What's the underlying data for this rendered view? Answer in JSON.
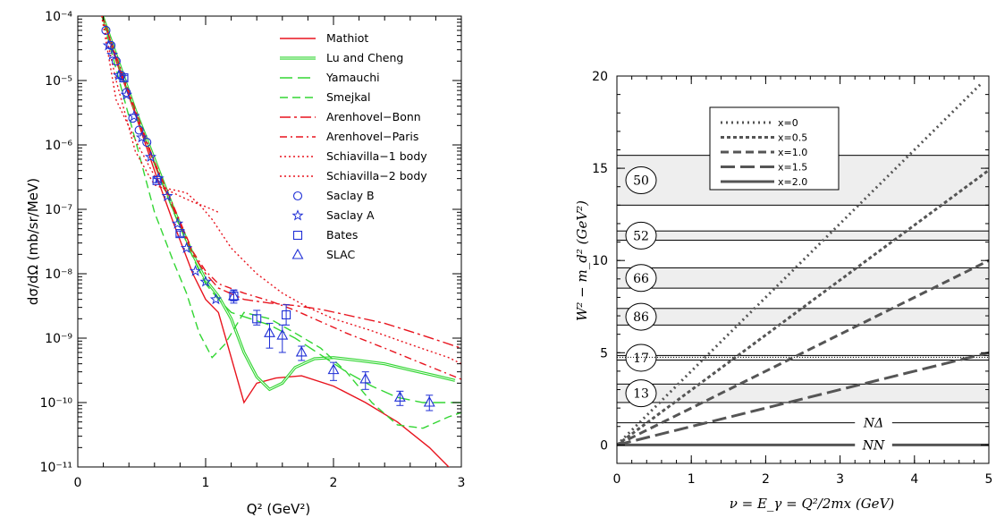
{
  "chart_data": [
    {
      "type": "line",
      "title": "",
      "xlabel": "Q² (GeV²)",
      "ylabel": "dσ/dΩ (mb/sr/MeV)",
      "xlim": [
        0,
        3
      ],
      "ylim": [
        1e-11,
        0.0001
      ],
      "yscale": "log",
      "xticks": [
        "0",
        "1",
        "2",
        "3"
      ],
      "yticks": [
        "10⁻¹¹",
        "10⁻¹⁰",
        "10⁻⁹",
        "10⁻⁸",
        "10⁻⁷",
        "10⁻⁶",
        "10⁻⁵",
        "10⁻⁴"
      ],
      "legend_position": "top-right",
      "series": [
        {
          "name": "Mathiot",
          "style": "solid-red",
          "color": "#e8141e",
          "x": [
            0.18,
            0.3,
            0.45,
            0.6,
            0.75,
            0.9,
            1.0,
            1.1,
            1.2,
            1.3,
            1.4,
            1.55,
            1.75,
            2.0,
            2.25,
            2.5,
            2.75,
            2.95
          ],
          "y": [
            0.00012,
            2e-05,
            3e-06,
            4e-07,
            6e-08,
            1e-08,
            4e-09,
            2.5e-09,
            5e-10,
            1e-10,
            2e-10,
            2.4e-10,
            2.6e-10,
            1.8e-10,
            1e-10,
            5e-11,
            2e-11,
            8e-12
          ]
        },
        {
          "name": "Lu and Cheng",
          "style": "double-green",
          "color": "#33d633",
          "x": [
            0.18,
            0.3,
            0.45,
            0.6,
            0.75,
            0.9,
            1.0,
            1.1,
            1.2,
            1.3,
            1.4,
            1.5,
            1.6,
            1.7,
            1.85,
            2.0,
            2.2,
            2.4,
            2.6,
            2.8,
            2.95
          ],
          "y": [
            0.00012,
            2.5e-05,
            3.5e-06,
            6e-07,
            1e-07,
            2e-08,
            8e-09,
            4.5e-09,
            2e-09,
            6e-10,
            2.5e-10,
            1.6e-10,
            2e-10,
            3.5e-10,
            4.8e-10,
            5e-10,
            4.5e-10,
            4e-10,
            3.2e-10,
            2.6e-10,
            2.2e-10
          ]
        },
        {
          "name": "Yamauchi",
          "style": "long-dash-green",
          "color": "#33d633",
          "x": [
            0.18,
            0.3,
            0.45,
            0.6,
            0.75,
            0.9,
            1.0,
            1.1,
            1.2,
            1.35,
            1.5,
            1.7,
            1.9,
            2.1,
            2.3,
            2.5,
            2.7,
            2.9,
            3.0
          ],
          "y": [
            0.00012,
            2.2e-05,
            3.2e-06,
            5e-07,
            9e-08,
            1.8e-08,
            7e-09,
            4e-09,
            2.5e-09,
            2e-09,
            1.6e-09,
            1e-09,
            5.5e-10,
            3e-10,
            1.8e-10,
            1.2e-10,
            1e-10,
            1e-10,
            1e-10
          ]
        },
        {
          "name": "Smejkal",
          "style": "dash-green",
          "color": "#33d633",
          "x": [
            0.18,
            0.3,
            0.45,
            0.6,
            0.75,
            0.85,
            0.95,
            1.05,
            1.15,
            1.3,
            1.5,
            1.7,
            1.9,
            2.1,
            2.3,
            2.5,
            2.7,
            2.9,
            3.0
          ],
          "y": [
            0.00012,
            1.5e-05,
            1.2e-06,
            9e-08,
            1.5e-08,
            5e-09,
            1.2e-09,
            5e-10,
            8e-10,
            2.5e-09,
            2e-09,
            1.2e-09,
            7e-10,
            3e-10,
            1e-10,
            4.5e-11,
            4e-11,
            6e-11,
            7e-11
          ]
        },
        {
          "name": "Arenhovel−Bonn",
          "style": "dash-dot-red",
          "color": "#e8141e",
          "x": [
            0.18,
            0.3,
            0.45,
            0.6,
            0.75,
            0.9,
            1.0,
            1.1,
            1.3,
            1.5,
            1.7,
            1.9,
            2.1,
            2.4,
            2.7,
            3.0
          ],
          "y": [
            0.00012,
            2.2e-05,
            3.2e-06,
            5e-07,
            1e-07,
            2e-08,
            1e-08,
            6e-09,
            4e-09,
            3.5e-09,
            3.2e-09,
            2.8e-09,
            2.3e-09,
            1.7e-09,
            1.1e-09,
            7e-10
          ]
        },
        {
          "name": "Arenhovel−Paris",
          "style": "dash-dot-red-2",
          "color": "#e8141e",
          "x": [
            0.18,
            0.3,
            0.45,
            0.6,
            0.75,
            0.9,
            1.0,
            1.1,
            1.3,
            1.5,
            1.7,
            1.9,
            2.1,
            2.4,
            2.7,
            3.0
          ],
          "y": [
            0.00012,
            2.4e-05,
            3.5e-06,
            5.5e-07,
            1.1e-07,
            2.2e-08,
            1.1e-08,
            7e-09,
            5e-09,
            3.8e-09,
            2.7e-09,
            1.8e-09,
            1.2e-09,
            7e-10,
            4e-10,
            2.3e-10
          ]
        },
        {
          "name": "Schiavilla−1 body",
          "style": "dot-red",
          "color": "#e8141e",
          "x": [
            0.18,
            0.3,
            0.45,
            0.55,
            0.65,
            0.75,
            0.85,
            0.95,
            1.05,
            1.2,
            1.4,
            1.6,
            1.8,
            2.0,
            2.3,
            2.6,
            2.9,
            3.0
          ],
          "y": [
            0.00012,
            5e-06,
            1.2e-06,
            5e-07,
            2.2e-07,
            2e-07,
            1.8e-07,
            1.2e-07,
            7e-08,
            2.5e-08,
            1e-08,
            5e-09,
            3e-09,
            2e-09,
            1.3e-09,
            8e-10,
            5e-10,
            4e-10
          ]
        },
        {
          "name": "Schiavilla−2 body",
          "style": "dot-red-2",
          "color": "#e8141e",
          "x": [
            0.18,
            0.3,
            0.45,
            0.55,
            0.6,
            0.7,
            0.8,
            0.9,
            1.0,
            1.1
          ],
          "y": [
            0.00012,
            1e-05,
            8e-07,
            3.5e-07,
            2.4e-07,
            2e-07,
            1.6e-07,
            1.3e-07,
            1.1e-07,
            9e-08
          ]
        }
      ],
      "data_points": [
        {
          "name": "Saclay B",
          "marker": "circle",
          "color": "#1f2fd6",
          "x": [
            0.22,
            0.26,
            0.3,
            0.34,
            0.38,
            0.43,
            0.48,
            0.54
          ],
          "y": [
            6e-05,
            3.5e-05,
            2e-05,
            1.2e-05,
            6.5e-06,
            2.6e-06,
            1.7e-06,
            1.1e-06
          ],
          "err": []
        },
        {
          "name": "Saclay A",
          "marker": "star",
          "color": "#1f2fd6",
          "x": [
            0.24,
            0.27,
            0.32,
            0.38,
            0.44,
            0.5,
            0.57,
            0.63,
            0.7,
            0.78,
            0.85,
            0.92,
            1.0,
            1.08
          ],
          "y": [
            3.5e-05,
            2.5e-05,
            1.2e-05,
            6e-06,
            2.8e-06,
            1.3e-06,
            6.5e-07,
            3e-07,
            1.6e-07,
            6e-08,
            2.5e-08,
            1.1e-08,
            7.5e-09,
            4e-09
          ],
          "err": []
        },
        {
          "name": "Bates",
          "marker": "square",
          "color": "#1f2fd6",
          "x": [
            0.36,
            0.62,
            0.8,
            1.22,
            1.4,
            1.63
          ],
          "y": [
            1.1e-05,
            2.8e-07,
            4.2e-08,
            4.5e-09,
            2e-09,
            2.3e-09
          ],
          "err_low": [
            1e-05,
            2.6e-07,
            3.8e-08,
            3.8e-09,
            1.6e-09,
            1.6e-09
          ],
          "err_high": [
            1.2e-05,
            3e-07,
            4.6e-08,
            5.6e-09,
            2.7e-09,
            3.3e-09
          ]
        },
        {
          "name": "SLAC",
          "marker": "triangle",
          "color": "#1f2fd6",
          "x": [
            1.22,
            1.5,
            1.6,
            1.75,
            2.0,
            2.25,
            2.52,
            2.75
          ],
          "y": [
            4.5e-09,
            1.2e-09,
            1.1e-09,
            6e-10,
            3.2e-10,
            2.3e-10,
            1.2e-10,
            1e-10
          ],
          "err_low": [
            3.5e-09,
            7e-10,
            6e-10,
            4.5e-10,
            2.2e-10,
            1.6e-10,
            9e-11,
            7.5e-11
          ],
          "err_high": [
            5.5e-09,
            1.7e-09,
            1.6e-09,
            7.5e-10,
            4.2e-10,
            3e-10,
            1.5e-10,
            1.3e-10
          ]
        }
      ],
      "legend": [
        "Mathiot",
        "Lu and Cheng",
        "Yamauchi",
        "Smejkal",
        "Arenhovel−Bonn",
        "Arenhovel−Paris",
        "Schiavilla−1 body",
        "Schiavilla−2 body",
        "Saclay B",
        "Saclay A",
        "Bates",
        "SLAC"
      ]
    },
    {
      "type": "line",
      "title": "",
      "xlabel": "ν = E_γ = Q²/2mx  (GeV)",
      "ylabel": "W² − m_d²  (GeV²)",
      "xlim": [
        0,
        5
      ],
      "ylim": [
        -1,
        20
      ],
      "xticks": [
        "0",
        "1",
        "2",
        "3",
        "4",
        "5"
      ],
      "yticks": [
        "0",
        "5",
        "10",
        "15",
        "20"
      ],
      "legend_position": "top-left",
      "series": [
        {
          "name": "x=0",
          "style": "dot",
          "x": [
            0,
            4.9
          ],
          "y": [
            0,
            19.6
          ]
        },
        {
          "name": "x=0.5",
          "style": "short-dash",
          "x": [
            0,
            5
          ],
          "y": [
            0,
            14.9
          ]
        },
        {
          "name": "x=1.0",
          "style": "dash",
          "x": [
            0,
            5
          ],
          "y": [
            0,
            10
          ]
        },
        {
          "name": "x=1.5",
          "style": "long-dash",
          "x": [
            0,
            5
          ],
          "y": [
            0,
            5
          ]
        },
        {
          "name": "x=2.0",
          "style": "solid",
          "x": [
            0,
            5
          ],
          "y": [
            0,
            0
          ]
        }
      ],
      "bands": [
        {
          "label": "50",
          "y0": 13.0,
          "y1": 15.7
        },
        {
          "label": "52",
          "y0": 11.1,
          "y1": 11.6
        },
        {
          "label": "66",
          "y0": 8.5,
          "y1": 9.6
        },
        {
          "label": "86",
          "y0": 6.5,
          "y1": 7.4
        },
        {
          "label": "17",
          "y0": 4.6,
          "y1": 4.85
        },
        {
          "label": "13",
          "y0": 2.3,
          "y1": 3.3
        }
      ],
      "thresholds": [
        {
          "label": "NΔ",
          "y": 1.2
        },
        {
          "label": "NN",
          "y": 0
        }
      ],
      "legend": [
        "x=0",
        "x=0.5",
        "x=1.0",
        "x=1.5",
        "x=2.0"
      ]
    }
  ]
}
